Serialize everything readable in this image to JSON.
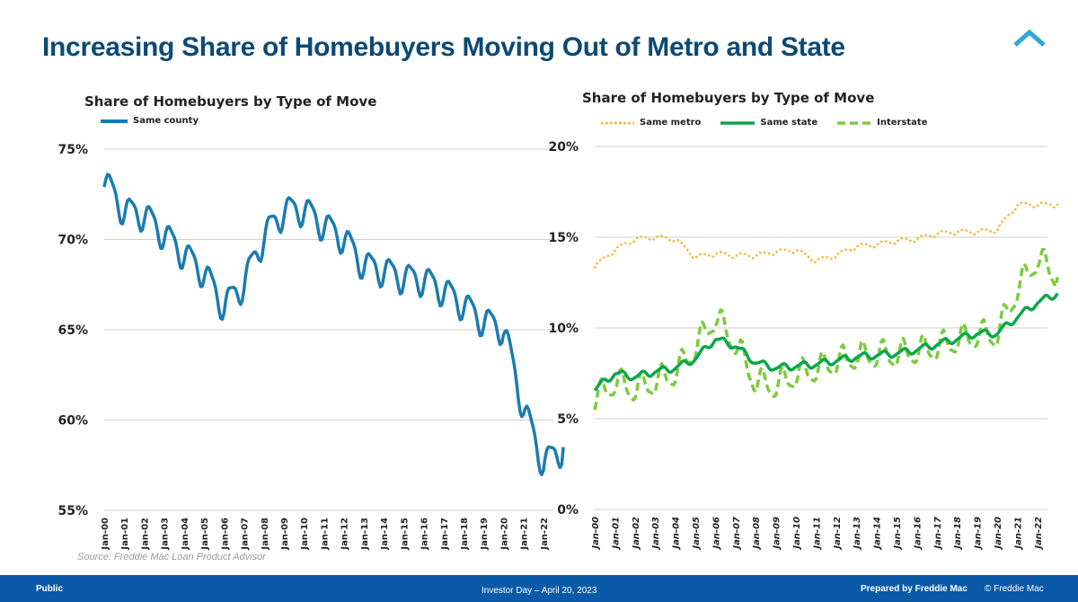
{
  "header": {
    "title": "Increasing Share of Homebuyers Moving Out of Metro and State"
  },
  "source": "Source: Freddie Mac Loan Product Advisor",
  "footer": {
    "left": "Public",
    "middle": "Investor Day – April 20, 2023",
    "right": "Prepared by Freddie Mac",
    "copyright": "© Freddie Mac"
  },
  "colors": {
    "same_county": "#1a7cb0",
    "same_metro": "#f2b72d",
    "same_state": "#0aa74b",
    "interstate": "#7dcb3f",
    "title": "#0b4a74",
    "footer": "#0b5aa8"
  },
  "chart_data": [
    {
      "type": "line",
      "title": "Share of Homebuyers by Type of Move",
      "xlabel": "",
      "ylabel": "",
      "ylim": [
        55,
        75
      ],
      "yticks": [
        55,
        60,
        65,
        70,
        75
      ],
      "ytick_labels": [
        "55%",
        "60%",
        "65%",
        "70%",
        "75%"
      ],
      "x_tick_labels": [
        "Jan-00",
        "Jan-01",
        "Jan-02",
        "Jan-03",
        "Jan-04",
        "Jan-05",
        "Jan-06",
        "Jan-07",
        "Jan-08",
        "Jan-09",
        "Jan-10",
        "Jan-11",
        "Jan-12",
        "Jan-13",
        "Jan-14",
        "Jan-15",
        "Jan-16",
        "Jan-17",
        "Jan-18",
        "Jan-19",
        "Jan-20",
        "Jan-21",
        "Jan-22"
      ],
      "x_start_year": 2000,
      "grid": true,
      "legend": "top-left",
      "series": [
        {
          "name": "Same county",
          "style": "solid",
          "annual": [
            73.3,
            71.6,
            71.4,
            70.3,
            69.2,
            68.2,
            66.3,
            67.6,
            70.2,
            71.6,
            71.7,
            70.8,
            70.1,
            68.6,
            68.3,
            67.9,
            67.8,
            67.2,
            66.4,
            65.5,
            65.1,
            60.7,
            57.6,
            58.5
          ],
          "seasonal_amplitude": 1.6
        }
      ]
    },
    {
      "type": "line",
      "title": "Share of Homebuyers by Type of Move",
      "xlabel": "",
      "ylabel": "",
      "ylim": [
        0,
        20
      ],
      "yticks": [
        0,
        5,
        10,
        15,
        20
      ],
      "ytick_labels": [
        "0%",
        "5%",
        "10%",
        "15%",
        "20%"
      ],
      "x_tick_labels": [
        "Jan-00",
        "Jan-01",
        "Jan-02",
        "Jan-03",
        "Jan-04",
        "Jan-05",
        "Jan-06",
        "Jan-07",
        "Jan-08",
        "Jan-09",
        "Jan-10",
        "Jan-11",
        "Jan-12",
        "Jan-13",
        "Jan-14",
        "Jan-15",
        "Jan-16",
        "Jan-17",
        "Jan-18",
        "Jan-19",
        "Jan-20",
        "Jan-21",
        "Jan-22"
      ],
      "x_start_year": 2000,
      "grid": true,
      "legend": "top",
      "series": [
        {
          "name": "Same metro",
          "style": "dotted",
          "annual": [
            13.4,
            14.3,
            14.9,
            15.0,
            14.9,
            13.9,
            14.1,
            14.0,
            14.0,
            14.2,
            14.3,
            13.7,
            14.0,
            14.5,
            14.6,
            14.8,
            14.9,
            15.2,
            15.3,
            15.3,
            15.4,
            16.8,
            16.8,
            16.8
          ],
          "seasonal_amplitude": 0.25
        },
        {
          "name": "Same state",
          "style": "solid",
          "annual": [
            6.6,
            7.5,
            7.3,
            7.6,
            7.8,
            8.3,
            9.4,
            9.0,
            8.1,
            7.8,
            7.9,
            8.0,
            8.2,
            8.4,
            8.5,
            8.6,
            8.8,
            9.1,
            9.4,
            9.7,
            9.7,
            10.6,
            11.4,
            11.9
          ],
          "seasonal_amplitude": 0.35
        },
        {
          "name": "Interstate",
          "style": "dashed",
          "annual": [
            6.0,
            7.0,
            6.6,
            7.0,
            7.5,
            8.9,
            10.6,
            9.1,
            7.0,
            6.8,
            7.4,
            7.7,
            8.1,
            8.4,
            8.5,
            8.5,
            8.7,
            8.9,
            9.3,
            9.6,
            9.6,
            12.1,
            13.8,
            12.8
          ],
          "seasonal_amplitude": 1.4
        }
      ]
    }
  ]
}
